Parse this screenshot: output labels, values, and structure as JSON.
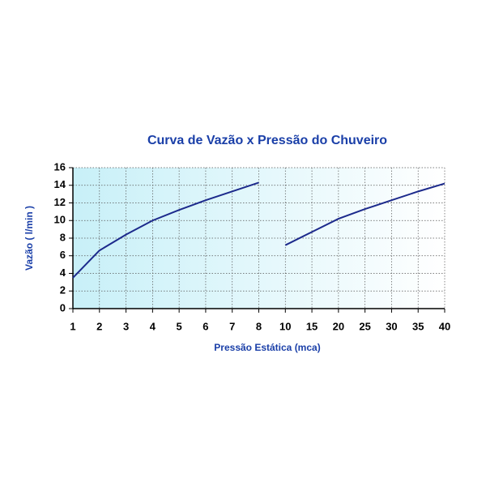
{
  "chart_data": {
    "type": "line",
    "title": "Curva de Vazão x Pressão do Chuveiro",
    "x_label": "Pressão Estática (mca)",
    "y_label": "Vazão ( l/min )",
    "categories": [
      "1",
      "2",
      "3",
      "4",
      "5",
      "6",
      "7",
      "8",
      "10",
      "15",
      "20",
      "25",
      "30",
      "35",
      "40"
    ],
    "series": [
      {
        "color": "#1c2a8c",
        "values": [
          3.5,
          6.6,
          8.4,
          10.0,
          11.2,
          12.3,
          13.3,
          14.3,
          null,
          null,
          null,
          null,
          null,
          null,
          null
        ]
      },
      {
        "color": "#1c2a8c",
        "values": [
          null,
          null,
          null,
          null,
          null,
          null,
          null,
          null,
          7.2,
          8.7,
          10.2,
          11.3,
          12.3,
          13.3,
          14.2
        ]
      }
    ],
    "ylim": [
      0,
      16
    ],
    "yticks": [
      0,
      2,
      4,
      6,
      8,
      10,
      12,
      14,
      16
    ],
    "grid": true
  }
}
